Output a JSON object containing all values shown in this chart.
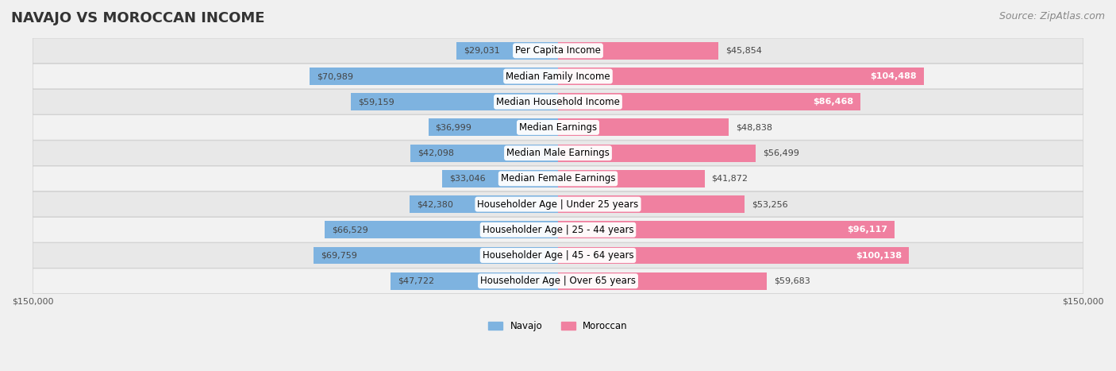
{
  "title": "NAVAJO VS MOROCCAN INCOME",
  "source": "Source: ZipAtlas.com",
  "categories": [
    "Per Capita Income",
    "Median Family Income",
    "Median Household Income",
    "Median Earnings",
    "Median Male Earnings",
    "Median Female Earnings",
    "Householder Age | Under 25 years",
    "Householder Age | 25 - 44 years",
    "Householder Age | 45 - 64 years",
    "Householder Age | Over 65 years"
  ],
  "navajo_values": [
    29031,
    70989,
    59159,
    36999,
    42098,
    33046,
    42380,
    66529,
    69759,
    47722
  ],
  "moroccan_values": [
    45854,
    104488,
    86468,
    48838,
    56499,
    41872,
    53256,
    96117,
    100138,
    59683
  ],
  "navajo_color": "#7EB3E0",
  "moroccan_color": "#F080A0",
  "navajo_color_dark": "#5B9FD4",
  "moroccan_color_dark": "#E85C85",
  "bg_color": "#f0f0f0",
  "row_bg": "#f8f8f8",
  "max_value": 150000,
  "legend_navajo": "Navajo",
  "legend_moroccan": "Moroccan",
  "title_fontsize": 13,
  "source_fontsize": 9,
  "label_fontsize": 8.5,
  "value_fontsize": 8,
  "axis_label_fontsize": 8
}
